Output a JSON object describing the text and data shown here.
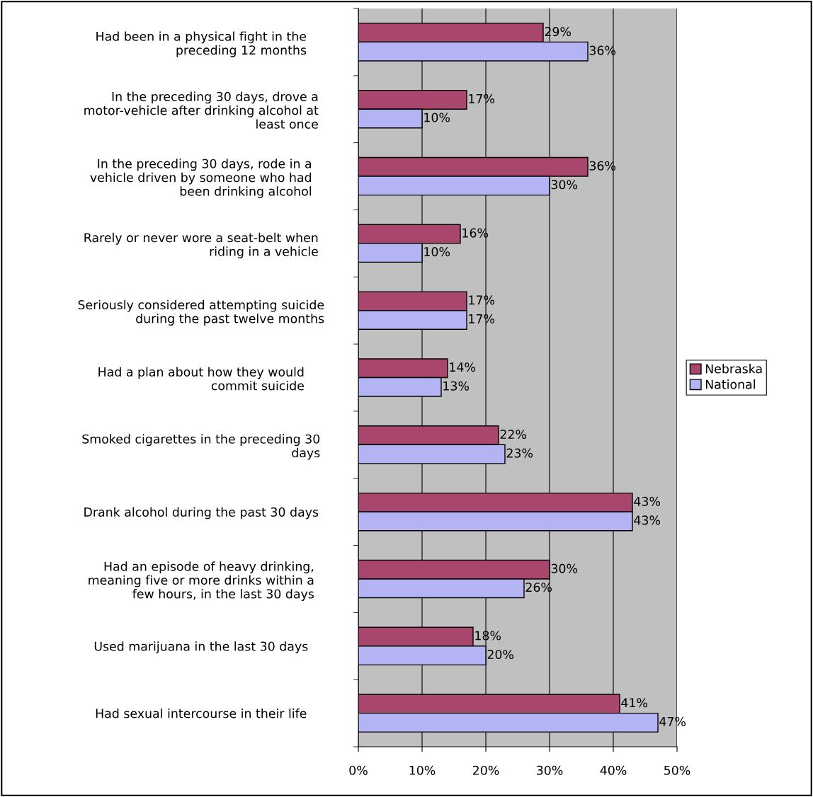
{
  "chart_data": {
    "type": "bar",
    "orientation": "horizontal",
    "categories": [
      "Had been in a physical fight in the\npreceding 12 months",
      "In the preceding 30 days, drove a\nmotor-vehicle after drinking alcohol at\nleast once",
      "In the preceding 30 days, rode in a\nvehicle driven by someone who had\nbeen drinking alcohol",
      "Rarely or never wore a seat-belt when\nriding in a vehicle",
      "Seriously considered attempting suicide\nduring the past twelve months",
      "Had a plan about how they would\ncommit suicide",
      "Smoked cigarettes in the preceding 30\ndays",
      "Drank alcohol during the past 30 days",
      "Had an episode of heavy drinking,\nmeaning five or more drinks within a\nfew hours, in the last 30 days",
      "Used marijuana in the last 30 days",
      "Had sexual intercourse in their life"
    ],
    "series": [
      {
        "name": "Nebraska",
        "color": "#a8466e",
        "values": [
          29,
          17,
          36,
          16,
          17,
          14,
          22,
          43,
          30,
          18,
          41
        ],
        "value_labels": [
          "29%",
          "17%",
          "36%",
          "16%",
          "17%",
          "14%",
          "22%",
          "43%",
          "30%",
          "18%",
          "41%"
        ]
      },
      {
        "name": "National",
        "color": "#b4b4f4",
        "values": [
          36,
          10,
          30,
          10,
          17,
          13,
          23,
          43,
          26,
          20,
          47
        ],
        "value_labels": [
          "36%",
          "10%",
          "30%",
          "10%",
          "17%",
          "13%",
          "23%",
          "43%",
          "26%",
          "20%",
          "47%"
        ]
      }
    ],
    "xlim": [
      0,
      50
    ],
    "xticks": [
      {
        "value": 0,
        "label": "0%"
      },
      {
        "value": 10,
        "label": "10%"
      },
      {
        "value": 20,
        "label": "20%"
      },
      {
        "value": 30,
        "label": "30%"
      },
      {
        "value": 40,
        "label": "40%"
      },
      {
        "value": 50,
        "label": "50%"
      }
    ],
    "grid": "x",
    "legend": "right"
  }
}
